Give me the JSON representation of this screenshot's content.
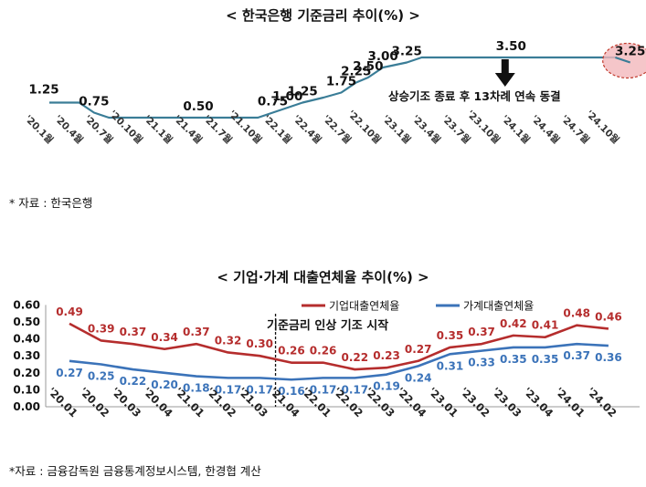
{
  "chart_data": [
    {
      "type": "line",
      "title": "< 한국은행 기준금리 추이(%) >",
      "categories": [
        "'20.1월",
        "'20.4월",
        "'20.7월",
        "'20.10월",
        "'21.1월",
        "'21.4월",
        "'21.7월",
        "'21.10월",
        "'22.1월",
        "'22.4월",
        "'22.7월",
        "'22.10월",
        "'23.1월",
        "'23.4월",
        "'23.7월",
        "'23.10월",
        "'24.1월",
        "'24.4월",
        "'24.7월",
        "'24.10월"
      ],
      "series": [
        {
          "name": "기준금리",
          "color": "#3a7d97",
          "points": [
            {
              "x": 0,
              "y": 1.25
            },
            {
              "x": 1,
              "y": 1.25
            },
            {
              "x": 1.5,
              "y": 0.75
            },
            {
              "x": 2,
              "y": 0.5
            },
            {
              "x": 7.0,
              "y": 0.5
            },
            {
              "x": 7.5,
              "y": 0.75
            },
            {
              "x": 8.0,
              "y": 1.0
            },
            {
              "x": 8.5,
              "y": 1.25
            },
            {
              "x": 9.2,
              "y": 1.5
            },
            {
              "x": 9.8,
              "y": 1.75
            },
            {
              "x": 10.3,
              "y": 2.25
            },
            {
              "x": 10.7,
              "y": 2.5
            },
            {
              "x": 11.2,
              "y": 3.0
            },
            {
              "x": 12.0,
              "y": 3.25
            },
            {
              "x": 12.5,
              "y": 3.5
            },
            {
              "x": 19.0,
              "y": 3.5
            },
            {
              "x": 19.5,
              "y": 3.25
            }
          ]
        }
      ],
      "data_labels": [
        {
          "text": "1.25",
          "x": 0,
          "y": 1.25
        },
        {
          "text": "0.75",
          "x": 1.5,
          "y": 0.75
        },
        {
          "text": "0.50",
          "x": 5,
          "y": 0.5
        },
        {
          "text": "0.75",
          "x": 7.5,
          "y": 0.75
        },
        {
          "text": "1.00",
          "x": 8.0,
          "y": 1.0
        },
        {
          "text": "1.25",
          "x": 8.5,
          "y": 1.25
        },
        {
          "text": "1.75",
          "x": 9.8,
          "y": 1.75
        },
        {
          "text": "2.25",
          "x": 10.3,
          "y": 2.25
        },
        {
          "text": "2.50",
          "x": 10.7,
          "y": 2.5
        },
        {
          "text": "3.00",
          "x": 11.2,
          "y": 3.0
        },
        {
          "text": "3.25",
          "x": 12.0,
          "y": 3.25
        },
        {
          "text": "3.50",
          "x": 15.5,
          "y": 3.5
        },
        {
          "text": "3.25",
          "x": 19.5,
          "y": 3.25
        }
      ],
      "annotation": "상승기조 종료 후 13차례 연속 동결",
      "ylim": [
        0,
        4.0
      ],
      "grid": false,
      "source": "* 자료 : 한국은행"
    },
    {
      "type": "line",
      "title": "< 기업·가계 대출연체율 추이(%) >",
      "categories": [
        "'20.01",
        "'20.02",
        "'20.03",
        "'20.04",
        "'21.01",
        "'21.02",
        "'21.03",
        "'21.04",
        "'22.01",
        "'22.02",
        "'22.03",
        "'22.04",
        "'23.01",
        "'23.02",
        "'23.03",
        "'23.04",
        "'24.01",
        "'24.02"
      ],
      "series": [
        {
          "name": "기업대출연체율",
          "color": "#b52d2d",
          "values": [
            0.49,
            0.39,
            0.37,
            0.34,
            0.37,
            0.32,
            0.3,
            0.26,
            0.26,
            0.22,
            0.23,
            0.27,
            0.35,
            0.37,
            0.42,
            0.41,
            0.48,
            0.46
          ]
        },
        {
          "name": "가계대출연체율",
          "color": "#3b73b9",
          "values": [
            0.27,
            0.25,
            0.22,
            0.2,
            0.18,
            0.17,
            0.17,
            0.16,
            0.17,
            0.17,
            0.19,
            0.24,
            0.31,
            0.33,
            0.35,
            0.35,
            0.37,
            0.36
          ]
        }
      ],
      "yticks": [
        "0.60",
        "0.50",
        "0.40",
        "0.30",
        "0.20",
        "0.10",
        "0.00"
      ],
      "ylim": [
        0,
        0.6
      ],
      "grid": false,
      "legend": "top-right",
      "annotation": "기준금리 인상 기조 시작",
      "source": "*자료 : 금융감독원 금융통계정보시스템, 한경협 계산"
    }
  ]
}
